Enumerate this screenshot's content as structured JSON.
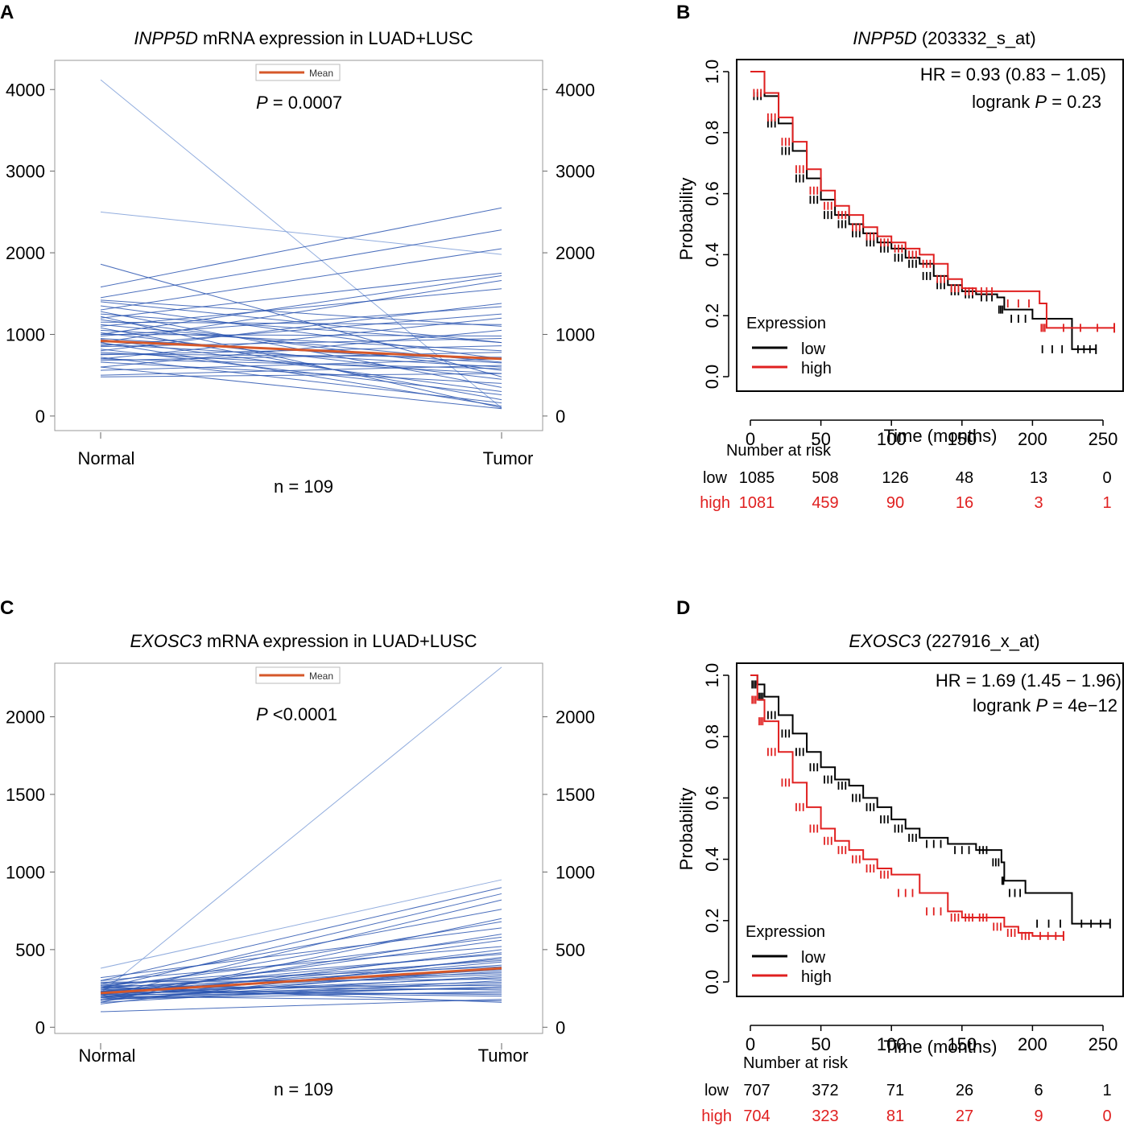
{
  "colors": {
    "line": "#2a55b0",
    "line_light": "#7f9fd8",
    "mean": "#d6582a",
    "low": "#000000",
    "high": "#e02020",
    "frame": "#333333"
  },
  "chart_data": [
    {
      "panel": "A",
      "type": "line",
      "title_gene": "INPP5D",
      "title_rest": " mRNA expression in LUAD+LUSC",
      "legend_label": "Mean",
      "pvalue_prefix": "P",
      "pvalue_text": " = 0.0007",
      "categories": [
        "Normal",
        "Tumor"
      ],
      "n_label": "n = 109",
      "ylim": [
        -80,
        4180
      ],
      "yticks": [
        0,
        1000,
        2000,
        3000,
        4000
      ],
      "mean": [
        920,
        700
      ],
      "pairs": [
        [
          4120,
          100
        ],
        [
          2500,
          1980
        ],
        [
          1860,
          480
        ],
        [
          1580,
          2550
        ],
        [
          1450,
          2280
        ],
        [
          1300,
          2050
        ],
        [
          1200,
          1750
        ],
        [
          1420,
          1100
        ],
        [
          1000,
          1720
        ],
        [
          900,
          1660
        ],
        [
          1100,
          1560
        ],
        [
          800,
          1380
        ],
        [
          980,
          1340
        ],
        [
          700,
          1200
        ],
        [
          1250,
          900
        ],
        [
          850,
          950
        ],
        [
          1150,
          1120
        ],
        [
          600,
          1050
        ],
        [
          1050,
          800
        ],
        [
          750,
          860
        ],
        [
          1350,
          700
        ],
        [
          950,
          650
        ],
        [
          680,
          780
        ],
        [
          1180,
          560
        ],
        [
          880,
          600
        ],
        [
          560,
          700
        ],
        [
          1020,
          450
        ],
        [
          780,
          520
        ],
        [
          1280,
          350
        ],
        [
          660,
          400
        ],
        [
          940,
          300
        ],
        [
          820,
          260
        ],
        [
          480,
          520
        ],
        [
          1080,
          200
        ],
        [
          720,
          160
        ],
        [
          1220,
          100
        ],
        [
          900,
          120
        ],
        [
          600,
          90
        ],
        [
          1000,
          980
        ],
        [
          860,
          1250
        ],
        [
          700,
          580
        ],
        [
          1120,
          660
        ],
        [
          760,
          720
        ],
        [
          500,
          620
        ],
        [
          1400,
          900
        ]
      ]
    },
    {
      "panel": "B",
      "type": "line",
      "title_gene": "INPP5D",
      "title_rest": " (203332_s_at)",
      "hr_text": "HR = 0.93 (0.83 − 1.05)",
      "logrank_prefix": "logrank ",
      "logrank_p": "P",
      "logrank_value": " = 0.23",
      "ylabel": "Probability",
      "xlabel": "Time (months)",
      "xticks": [
        0,
        50,
        100,
        150,
        200,
        250
      ],
      "yticks": [
        "0.0",
        "0.2",
        "0.4",
        "0.6",
        "0.8",
        "1.0"
      ],
      "xlim": [
        0,
        260
      ],
      "legend_title": "Expression",
      "legend_low": "low",
      "legend_high": "high",
      "series": [
        {
          "name": "low",
          "x": [
            0,
            10,
            20,
            30,
            40,
            50,
            60,
            70,
            80,
            90,
            100,
            110,
            120,
            130,
            140,
            150,
            160,
            175,
            180,
            200,
            228,
            245
          ],
          "y": [
            1.0,
            0.92,
            0.83,
            0.74,
            0.65,
            0.58,
            0.53,
            0.5,
            0.47,
            0.44,
            0.42,
            0.39,
            0.37,
            0.33,
            0.3,
            0.28,
            0.27,
            0.26,
            0.22,
            0.19,
            0.09,
            0.09
          ]
        },
        {
          "name": "high",
          "x": [
            0,
            10,
            20,
            30,
            40,
            50,
            60,
            70,
            80,
            90,
            100,
            110,
            120,
            130,
            140,
            150,
            160,
            175,
            205,
            210,
            258
          ],
          "y": [
            1.0,
            0.93,
            0.85,
            0.77,
            0.68,
            0.61,
            0.56,
            0.53,
            0.49,
            0.46,
            0.44,
            0.42,
            0.4,
            0.37,
            0.32,
            0.29,
            0.28,
            0.28,
            0.24,
            0.16,
            0.16
          ]
        }
      ],
      "risk_title": "Number at risk",
      "risk": {
        "low_label": "low",
        "high_label": "high",
        "low": [
          "1085",
          "508",
          "126",
          "48",
          "13",
          "0"
        ],
        "high": [
          "1081",
          "459",
          "90",
          "16",
          "3",
          "1"
        ]
      }
    },
    {
      "panel": "C",
      "type": "line",
      "title_gene": "EXOSC3",
      "title_rest": " mRNA expression in LUAD+LUSC",
      "legend_label": "Mean",
      "pvalue_prefix": "P",
      "pvalue_text": " <0.0001",
      "categories": [
        "Normal",
        "Tumor"
      ],
      "n_label": "n = 109",
      "ylim": [
        -40,
        2340
      ],
      "yticks": [
        0,
        500,
        1000,
        1500,
        2000
      ],
      "mean": [
        220,
        380
      ],
      "pairs": [
        [
          220,
          2320
        ],
        [
          380,
          950
        ],
        [
          300,
          900
        ],
        [
          250,
          860
        ],
        [
          200,
          820
        ],
        [
          280,
          760
        ],
        [
          160,
          700
        ],
        [
          240,
          680
        ],
        [
          320,
          640
        ],
        [
          190,
          600
        ],
        [
          260,
          580
        ],
        [
          210,
          560
        ],
        [
          300,
          520
        ],
        [
          180,
          500
        ],
        [
          230,
          480
        ],
        [
          270,
          470
        ],
        [
          150,
          450
        ],
        [
          210,
          440
        ],
        [
          250,
          430
        ],
        [
          190,
          420
        ],
        [
          230,
          400
        ],
        [
          280,
          390
        ],
        [
          170,
          380
        ],
        [
          220,
          370
        ],
        [
          200,
          360
        ],
        [
          260,
          350
        ],
        [
          240,
          340
        ],
        [
          180,
          330
        ],
        [
          210,
          320
        ],
        [
          290,
          310
        ],
        [
          160,
          300
        ],
        [
          230,
          290
        ],
        [
          200,
          280
        ],
        [
          250,
          270
        ],
        [
          190,
          260
        ],
        [
          220,
          250
        ],
        [
          270,
          240
        ],
        [
          180,
          230
        ],
        [
          210,
          220
        ],
        [
          240,
          210
        ],
        [
          100,
          180
        ],
        [
          200,
          170
        ],
        [
          260,
          160
        ],
        [
          230,
          200
        ],
        [
          180,
          260
        ]
      ]
    },
    {
      "panel": "D",
      "type": "line",
      "title_gene": "EXOSC3",
      "title_rest": " (227916_x_at)",
      "hr_text": "HR = 1.69 (1.45 − 1.96)",
      "logrank_prefix": "logrank ",
      "logrank_p": "P",
      "logrank_value": " = 4e−12",
      "ylabel": "Probability",
      "xlabel": "Time (months)",
      "xticks": [
        0,
        50,
        100,
        150,
        200,
        250
      ],
      "yticks": [
        "0.0",
        "0.2",
        "0.4",
        "0.6",
        "0.8",
        "1.0"
      ],
      "xlim": [
        0,
        260
      ],
      "legend_title": "Expression",
      "legend_low": "low",
      "legend_high": "high",
      "series": [
        {
          "name": "low",
          "x": [
            0,
            5,
            10,
            20,
            30,
            40,
            50,
            60,
            70,
            80,
            90,
            100,
            110,
            120,
            140,
            160,
            170,
            178,
            180,
            195,
            228,
            255
          ],
          "y": [
            1.0,
            0.97,
            0.93,
            0.87,
            0.81,
            0.75,
            0.7,
            0.66,
            0.64,
            0.6,
            0.57,
            0.53,
            0.5,
            0.47,
            0.45,
            0.43,
            0.43,
            0.39,
            0.33,
            0.29,
            0.19,
            0.19
          ]
        },
        {
          "name": "high",
          "x": [
            0,
            5,
            10,
            20,
            30,
            40,
            50,
            60,
            70,
            80,
            90,
            100,
            120,
            140,
            150,
            160,
            170,
            180,
            190,
            200,
            222
          ],
          "y": [
            1.0,
            0.92,
            0.85,
            0.75,
            0.65,
            0.57,
            0.5,
            0.46,
            0.43,
            0.4,
            0.37,
            0.35,
            0.29,
            0.23,
            0.21,
            0.21,
            0.21,
            0.18,
            0.16,
            0.15,
            0.15
          ]
        }
      ],
      "risk_title": "Number at risk",
      "risk": {
        "low_label": "low",
        "high_label": "high",
        "low": [
          "707",
          "372",
          "71",
          "26",
          "6",
          "1"
        ],
        "high": [
          "704",
          "323",
          "81",
          "27",
          "9",
          "0"
        ]
      }
    }
  ]
}
